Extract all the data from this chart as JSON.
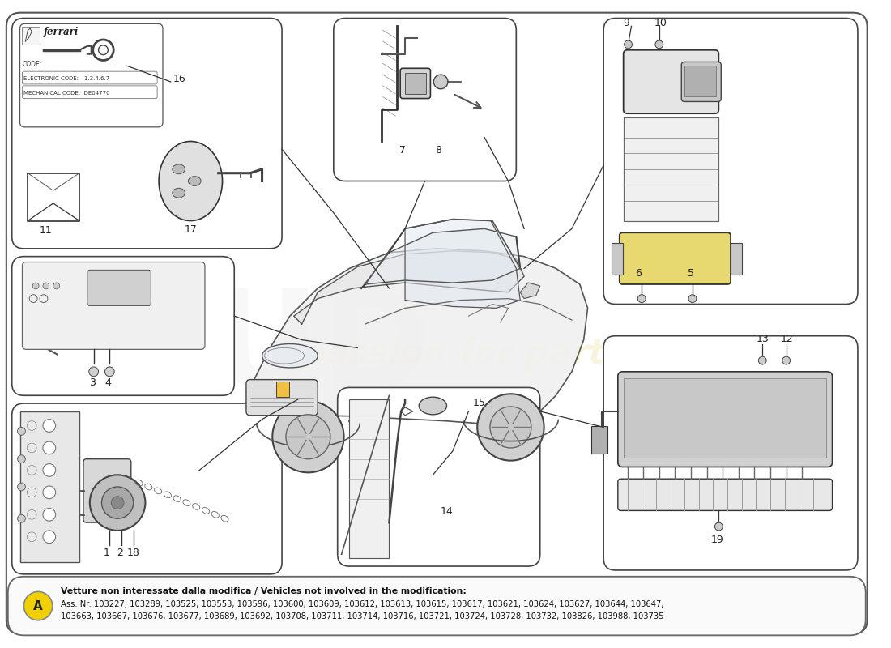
{
  "bg_color": "#ffffff",
  "outer_border_color": "#555555",
  "box_color": "#444444",
  "footnote_text_bold": "Vetture non interessate dalla modifica / Vehicles not involved in the modification:",
  "footnote_text1": "Ass. Nr. 103227, 103289, 103525, 103553, 103596, 103600, 103609, 103612, 103613, 103615, 103617, 103621, 103624, 103627, 103644, 103647,",
  "footnote_text2": "103663, 103667, 103676, 103677, 103689, 103692, 103708, 103711, 103714, 103716, 103721, 103724, 103728, 103732, 103826, 103988, 103735",
  "footnote_circle_color": "#f0d000",
  "watermark_color": "#e8d060",
  "watermark_alpha": 0.22
}
